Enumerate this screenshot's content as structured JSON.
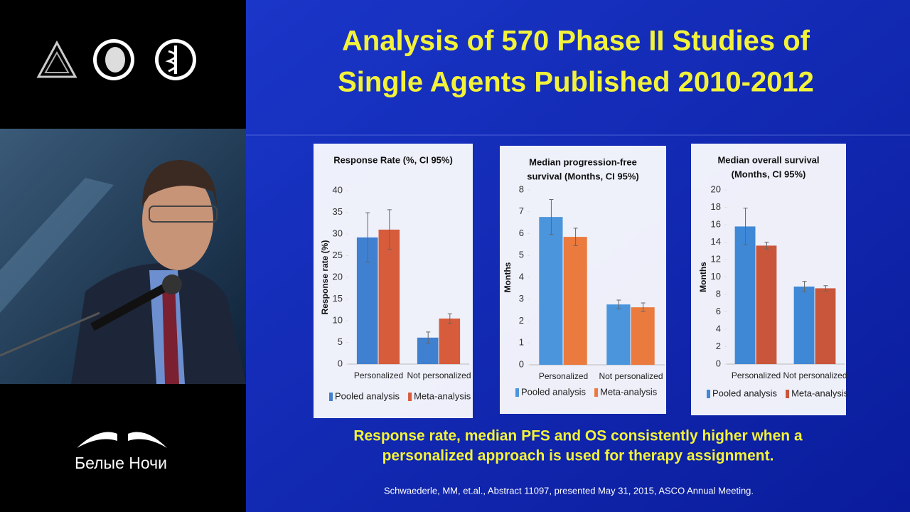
{
  "slide": {
    "title": [
      "Analysis of 570 Phase II Studies of",
      "Single Agents Published 2010-2012"
    ],
    "caption": [
      "Response rate, median PFS and OS consistently higher when a",
      "personalized approach is used for therapy assignment."
    ],
    "footnote": "Schwaederle, MM, et.al., Abstract 11097, presented May 31, 2015, ASCO Annual Meeting.",
    "brand": "Белые Ночи"
  },
  "chart_data": [
    {
      "type": "bar",
      "title": [
        "Response Rate (%, CI 95%)"
      ],
      "y_label": "Response rate (%)",
      "categories": [
        "Personalized",
        "Not personalized"
      ],
      "series": [
        {
          "name": "Pooled analysis",
          "color": "#3f80d0",
          "values": [
            29.2,
            6.1
          ],
          "errors": [
            5.7,
            1.3
          ]
        },
        {
          "name": "Meta-analysis",
          "color": "#d75c3c",
          "values": [
            31.0,
            10.5
          ],
          "errors": [
            4.6,
            1.1
          ]
        }
      ],
      "ylim": [
        0,
        40
      ],
      "yticks": [
        0,
        5,
        10,
        15,
        20,
        25,
        30,
        35,
        40
      ]
    },
    {
      "type": "bar",
      "title": [
        "Median progression-free",
        "survival (Months, CI 95%)"
      ],
      "y_label": "Months",
      "categories": [
        "Personalized",
        "Not personalized"
      ],
      "series": [
        {
          "name": "Pooled analysis",
          "color": "#4a95dc",
          "values": [
            6.76,
            2.76
          ],
          "errors": [
            0.8,
            0.2
          ]
        },
        {
          "name": "Meta-analysis",
          "color": "#ea7a3e",
          "values": [
            5.85,
            2.63
          ],
          "errors": [
            0.4,
            0.2
          ]
        }
      ],
      "ylim": [
        0,
        8
      ],
      "yticks": [
        0,
        1,
        2,
        3,
        4,
        5,
        6,
        7,
        8
      ]
    },
    {
      "type": "bar",
      "title": [
        "Median overall survival",
        "(Months, CI 95%)"
      ],
      "y_label": "Months",
      "categories": [
        "Personalized",
        "Not personalized"
      ],
      "series": [
        {
          "name": "Pooled analysis",
          "color": "#3f88d6",
          "values": [
            15.8,
            8.9
          ],
          "errors": [
            2.1,
            0.6
          ]
        },
        {
          "name": "Meta-analysis",
          "color": "#c9563a",
          "values": [
            13.6,
            8.7
          ],
          "errors": [
            0.4,
            0.3
          ]
        }
      ],
      "ylim": [
        0,
        20
      ],
      "yticks": [
        0,
        2,
        4,
        6,
        8,
        10,
        12,
        14,
        16,
        18,
        20
      ]
    }
  ]
}
